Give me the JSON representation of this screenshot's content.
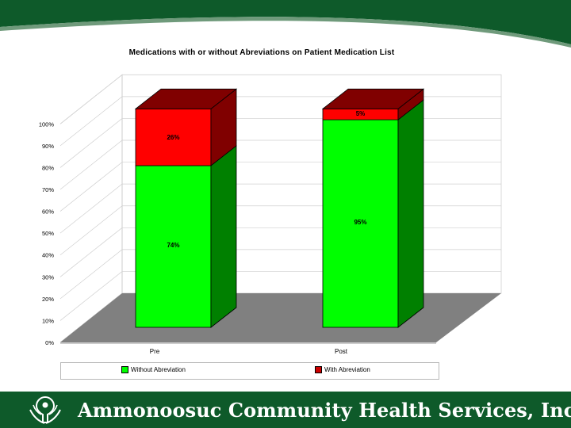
{
  "chart_data": {
    "type": "bar",
    "stacked": true,
    "three_d": true,
    "title": "Medications with or without Abreviations on Patient Medication List",
    "categories": [
      "Pre",
      "Post"
    ],
    "series": [
      {
        "name": "Without Abreviation",
        "values": [
          74,
          95
        ],
        "labels": [
          "74%",
          "95%"
        ],
        "color": "#00ff00",
        "side_color": "#008000"
      },
      {
        "name": "With Abreviation",
        "values": [
          26,
          5
        ],
        "labels": [
          "26%",
          "5%"
        ],
        "color": "#ff0000",
        "side_color": "#800000"
      }
    ],
    "y_ticks": [
      "0%",
      "10%",
      "20%",
      "30%",
      "40%",
      "50%",
      "60%",
      "70%",
      "80%",
      "90%",
      "100%"
    ],
    "ylim": [
      0,
      100
    ],
    "grid": true,
    "legend_position": "bottom"
  },
  "footer": {
    "organization": "Ammonoosuc Community Health Services, Inc.",
    "logo_icon": "hands-logo-icon"
  },
  "theme": {
    "header_green": "#0e5a2a",
    "floor_gray": "#808080"
  }
}
